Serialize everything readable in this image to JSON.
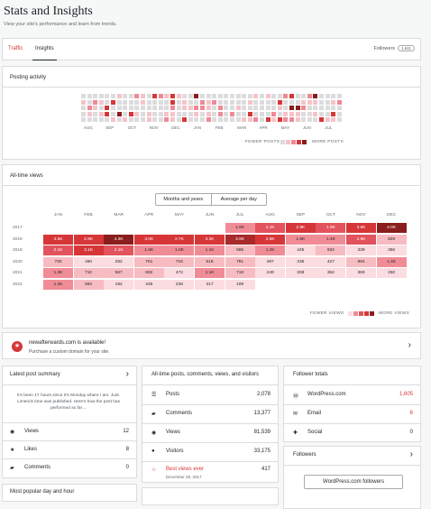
{
  "header": {
    "title": "Stats and Insights",
    "subtitle": "View your site's performance and learn from trends."
  },
  "tabs": [
    {
      "label": "Traffic"
    },
    {
      "label": "Insights"
    }
  ],
  "followers_badge": {
    "label": "Followers",
    "count": "1,611"
  },
  "posting_activity": {
    "title": "Posting activity",
    "months": [
      "AUG",
      "SEP",
      "OCT",
      "NOV",
      "DEC",
      "JAN",
      "FEB",
      "MAR",
      "APR",
      "MAY",
      "JUN",
      "JUL"
    ],
    "legend_fewer": "FEWER POSTS",
    "legend_more": "MORE POSTS"
  },
  "all_time_views": {
    "title": "All-time views",
    "toggle": [
      "Months and years",
      "Average per day"
    ],
    "months": [
      "JAN",
      "FEB",
      "MAR",
      "APR",
      "MAY",
      "JUN",
      "JUL",
      "AUG",
      "SEP",
      "OCT",
      "NOV",
      "DEC"
    ],
    "years": [
      "2017",
      "2018",
      "2019",
      "2020",
      "2021",
      "2022"
    ],
    "cells": [
      [
        "",
        "",
        "",
        "",
        "",
        "",
        "1.5K",
        "2.1K",
        "2.9K",
        "1.9K",
        "3.6K",
        "4.0K"
      ],
      [
        "3.5K",
        "2.9K",
        "4.3K",
        "3.0K",
        "2.7K",
        "3.3K",
        "3.9K",
        "2.6K",
        "1.5K",
        "1.4K",
        "1.9K",
        "829"
      ],
      [
        "2.1K",
        "3.1K",
        "2.1K",
        "1.5K",
        "1.0K",
        "1.1K",
        "565",
        "1.2K",
        "445",
        "932",
        "339",
        "356"
      ],
      [
        "730",
        "460",
        "282",
        "751",
        "716",
        "518",
        "791",
        "487",
        "435",
        "427",
        "894",
        "1.4K"
      ],
      [
        "1.3K",
        "710",
        "567",
        "692",
        "472",
        "1.1K",
        "718",
        "249",
        "308",
        "362",
        "369",
        "250"
      ],
      [
        "1.2K",
        "682",
        "192",
        "348",
        "238",
        "317",
        "109",
        "",
        "",
        "",
        "",
        ""
      ]
    ],
    "legend_fewer": "FEWER VIEWS",
    "legend_more": "MORE VIEWS"
  },
  "banner": {
    "title": "newafterwards.com is available!",
    "subtitle": "Purchase a custom domain for your site."
  },
  "latest_post": {
    "title": "Latest post summary",
    "text": "It's been 17 hours since It's Monday where I am. Just. Limerick time was published. Here's how the post has performed so far…",
    "stats": [
      {
        "label": "Views",
        "value": "12"
      },
      {
        "label": "Likes",
        "value": "8"
      },
      {
        "label": "Comments",
        "value": "0"
      }
    ]
  },
  "totals": {
    "title": "All-time posts, comments, views, and visitors",
    "stats": [
      {
        "label": "Posts",
        "value": "2,078"
      },
      {
        "label": "Comments",
        "value": "13,377"
      },
      {
        "label": "Views",
        "value": "81,539"
      },
      {
        "label": "Visitors",
        "value": "33,175"
      },
      {
        "label": "Best views ever",
        "value": "417",
        "sub": "December 28, 2017"
      }
    ]
  },
  "follower_totals": {
    "title": "Follower totals",
    "stats": [
      {
        "label": "WordPress.com",
        "value": "1,605"
      },
      {
        "label": "Email",
        "value": "6"
      },
      {
        "label": "Social",
        "value": "0"
      }
    ]
  },
  "followers_card": {
    "title": "Followers",
    "select": "WordPress.com followers"
  },
  "popular": {
    "title": "Most popular day and hour"
  },
  "colors": {
    "accent": "#d63638",
    "dark": "#8a1d1d",
    "light": "#f5c3c8",
    "empty": "#dcdcde"
  }
}
